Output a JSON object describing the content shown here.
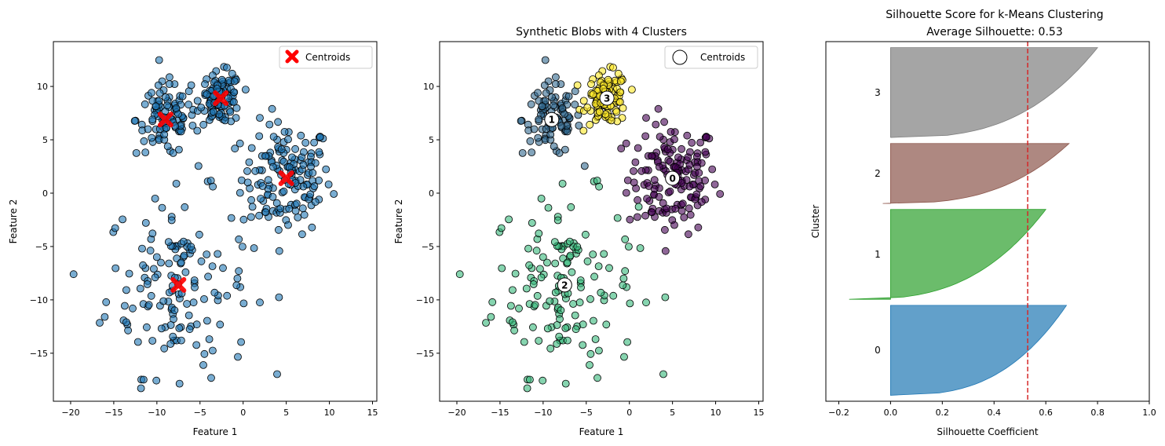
{
  "chart_data": [
    {
      "type": "scatter",
      "title": "",
      "xlabel": "Feature 1",
      "ylabel": "Feature 2",
      "xlim": [
        -22,
        15.5
      ],
      "ylim": [
        -19.5,
        14.2
      ],
      "xticks": [
        -20,
        -15,
        -10,
        -5,
        0,
        5,
        10,
        15
      ],
      "yticks": [
        -15,
        -10,
        -5,
        0,
        5,
        10
      ],
      "point_color": "#1f77b4",
      "centroid_color": "#ff0000",
      "centroid_marker": "X",
      "legend": {
        "label": "Centroids",
        "placement": "top-right"
      },
      "centroids": [
        [
          5.0,
          1.4
        ],
        [
          -7.5,
          -8.6
        ],
        [
          -9.0,
          6.9
        ],
        [
          -2.6,
          8.9
        ]
      ]
    },
    {
      "type": "scatter",
      "title": "Synthetic Blobs with 4 Clusters",
      "xlabel": "Feature 1",
      "ylabel": "Feature 2",
      "xlim": [
        -22,
        15.5
      ],
      "ylim": [
        -19.5,
        14.2
      ],
      "xticks": [
        -20,
        -15,
        -10,
        -5,
        0,
        5,
        10,
        15
      ],
      "yticks": [
        -15,
        -10,
        -5,
        0,
        5,
        10
      ],
      "cluster_colors": [
        "#440154",
        "#35b779",
        "#31688e",
        "#fde725"
      ],
      "legend": {
        "label": "Centroids",
        "placement": "top-right"
      },
      "centroid_labels": [
        "0",
        "2",
        "1",
        "3"
      ],
      "centroids": [
        [
          5.0,
          1.4
        ],
        [
          -7.5,
          -8.6
        ],
        [
          -9.0,
          6.9
        ],
        [
          -2.6,
          8.9
        ]
      ]
    },
    {
      "type": "area",
      "title": "Silhouette Score for  k-Means Clustering",
      "subtitle": "Average Silhouette: 0.53",
      "xlabel": "Silhouette Coefficient",
      "ylabel": "Cluster",
      "xlim": [
        -0.25,
        1.0
      ],
      "xticks": [
        -0.2,
        0.0,
        0.2,
        0.4,
        0.6,
        0.8,
        1.0
      ],
      "xtick_labels": [
        "−0.2",
        "0.0",
        "0.2",
        "0.4",
        "0.6",
        "0.8",
        "1.0"
      ],
      "average_silhouette": 0.53,
      "average_line_color": "#d62728",
      "clusters": [
        {
          "label": "0",
          "color": "#1f77b4",
          "max": 0.68,
          "min": 0.0,
          "size": 150
        },
        {
          "label": "1",
          "color": "#2ca02c",
          "max": 0.6,
          "min": -0.16,
          "size": 150
        },
        {
          "label": "2",
          "color": "#8c564b",
          "max": 0.69,
          "min": -0.03,
          "size": 100
        },
        {
          "label": "3",
          "color": "#7f7f7f",
          "max": 0.8,
          "min": 0.0,
          "size": 150
        }
      ]
    }
  ]
}
